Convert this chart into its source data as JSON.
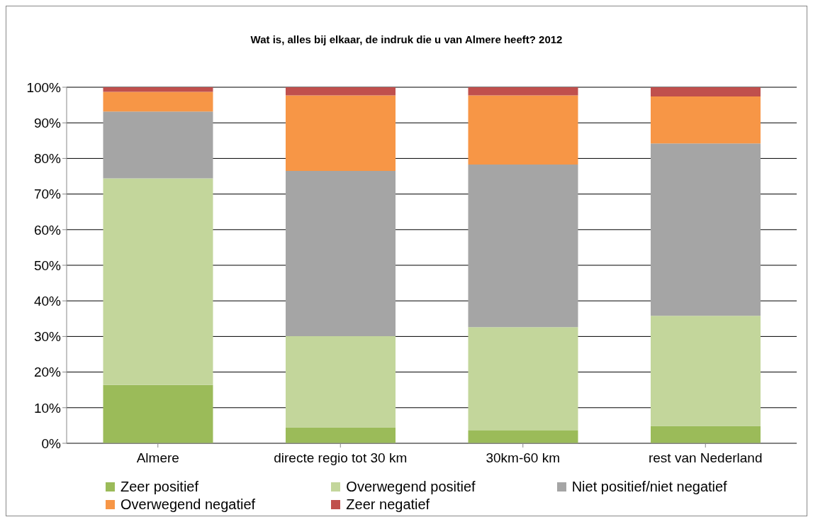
{
  "chart_data": {
    "type": "bar",
    "stacked": true,
    "title": "Wat is, alles bij elkaar, de indruk die u van Almere heeft?  2012",
    "categories": [
      "Almere",
      "directe regio tot 30 km",
      "30km-60 km",
      "rest van Nederland"
    ],
    "series": [
      {
        "name": "Zeer positief",
        "color": "#9bbb59",
        "values": [
          16.4,
          4.5,
          3.6,
          4.9
        ]
      },
      {
        "name": "Overwegend positief",
        "color": "#c3d69b",
        "values": [
          58.0,
          25.6,
          29.0,
          30.9
        ]
      },
      {
        "name": "Niet positief/niet negatief",
        "color": "#a5a5a5",
        "values": [
          18.8,
          46.4,
          45.7,
          48.4
        ]
      },
      {
        "name": "Overwegend negatief",
        "color": "#f79646",
        "values": [
          5.5,
          21.2,
          19.4,
          13.2
        ]
      },
      {
        "name": "Zeer negatief",
        "color": "#c0504d",
        "values": [
          1.3,
          2.3,
          2.3,
          2.6
        ]
      }
    ],
    "ylim": [
      0,
      100
    ],
    "yticks": [
      {
        "value": 0,
        "label": "0%"
      },
      {
        "value": 10,
        "label": "10%"
      },
      {
        "value": 20,
        "label": "20%"
      },
      {
        "value": 30,
        "label": "30%"
      },
      {
        "value": 40,
        "label": "40%"
      },
      {
        "value": 50,
        "label": "50%"
      },
      {
        "value": 60,
        "label": "60%"
      },
      {
        "value": 70,
        "label": "70%"
      },
      {
        "value": 80,
        "label": "80%"
      },
      {
        "value": 90,
        "label": "90%"
      },
      {
        "value": 100,
        "label": "100%"
      }
    ],
    "grid": "y",
    "legend": "bottom"
  }
}
